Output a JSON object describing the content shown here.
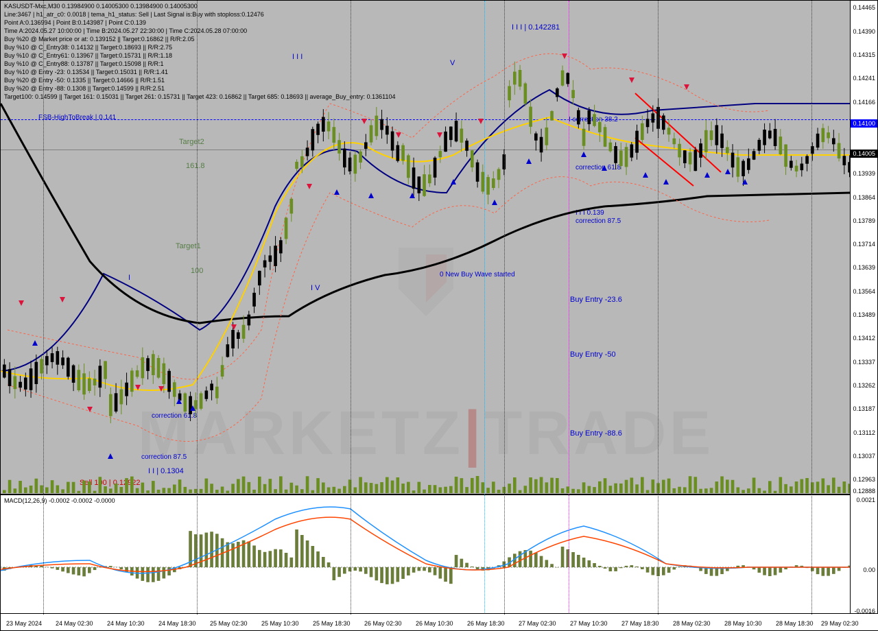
{
  "header": {
    "symbol": "KASUSDT-Mxc,M30",
    "ohlc": "0.13984900 0.14005300 0.13984900 0.14005300",
    "line1": "Line:3467 | h1_atr_c0: 0.0018 | tema_h1_status: Sell | Last Signal is:Buy with stoploss:0.12476",
    "line2": "Point A:0.136994 | Point B:0.143987 | Point C:0.139",
    "line3": "Time A:2024.05.27 10:00:00 | Time B:2024.05.27 22:30:00 | Time C:2024.05.28 07:00:00",
    "line4": "Buy %20 @ Market price or at: 0.139152 || Target:0.16862 || R/R:2.05",
    "line5": "Buy %10 @ C_Entry38: 0.14132 || Target:0.18693 || R/R:2.75",
    "line6": "Buy %10 @ C_Entry61: 0.13967 || Target:0.15731 || R/R:1.18",
    "line7": "Buy %10 @ C_Entry88: 0.13787 || Target:0.15098 || R/R:1",
    "line8": "Buy %10 @ Entry -23: 0.13534 || Target:0.15031 || R/R:1.41",
    "line9": "Buy %20 @ Entry -50: 0.1335 || Target:0.14666 || R/R:1.51",
    "line10": "Buy %20 @ Entry -88: 0.1308 || Target:0.14599 || R/R:2.51",
    "line11": "Target100: 0.14599 || Target 161: 0.15031 || Target 261: 0.15731 || Target 423: 0.16862 || Target 685: 0.18693 || average_Buy_entry: 0.1361104"
  },
  "yaxis": {
    "labels": [
      "0.14465",
      "0.14390",
      "0.14315",
      "0.14241",
      "0.14166",
      "0.14100",
      "0.14005",
      "0.13939",
      "0.13864",
      "0.13789",
      "0.13714",
      "0.13639",
      "0.13564",
      "0.13489",
      "0.13412",
      "0.13337",
      "0.13262",
      "0.13187",
      "0.13112",
      "0.13037",
      "0.12963",
      "0.12888"
    ],
    "positions": [
      5,
      40,
      74,
      108,
      143,
      173,
      217,
      247,
      282,
      316,
      350,
      384,
      419,
      453,
      487,
      522,
      556,
      590,
      625,
      659,
      693,
      710
    ],
    "highlight_idx": 6,
    "blue_idx": 5
  },
  "yaxis_macd": {
    "labels": [
      "0.0021",
      "0.00",
      "-0.0016"
    ],
    "positions": [
      3,
      105,
      165
    ]
  },
  "xaxis": {
    "labels": [
      "23 May 2024",
      "24 May 02:30",
      "24 May 10:30",
      "24 May 18:30",
      "25 May 02:30",
      "25 May 10:30",
      "25 May 18:30",
      "26 May 02:30",
      "26 May 10:30",
      "26 May 18:30",
      "27 May 02:30",
      "27 May 10:30",
      "27 May 18:30",
      "28 May 02:30",
      "28 May 10:30",
      "28 May 18:30",
      "29 May 02:30"
    ],
    "positions": [
      8,
      80,
      155,
      230,
      305,
      380,
      455,
      530,
      605,
      680,
      755,
      830,
      905,
      980,
      1055,
      1130,
      1196
    ]
  },
  "annotations": {
    "fsb": "FSB-HighToBreak | 0.141",
    "target2": "Target2",
    "target2_pct": "161.8",
    "target1": "Target1",
    "target1_pct": "100",
    "wave_I": "I",
    "wave_II": "I I",
    "wave_III": "I I I",
    "wave_IV": "I V",
    "wave_V": "V",
    "wave_III_top": "I I I | 0.142281",
    "wave_IIb": "I I | 0.1304",
    "sell100": "Sell 100 | 0.12922",
    "newbuy": "0 New Buy Wave started",
    "entry236": "Buy Entry -23.6",
    "entry50": "Buy Entry -50",
    "entry886": "Buy Entry -88.6",
    "corr382": "I correction 38.2",
    "corr618": "correction 61.8",
    "corr875": "correction 87.5",
    "corr_hi": "I I I 0.139",
    "corr_hi2": "correction 87.5",
    "corr618_low": "correction 61.8"
  },
  "macd": {
    "label": "MACD(12,26,9) -0.0002 -0.0002 -0.0000"
  },
  "candles": {
    "count": 160,
    "color_up": "#6b8e23",
    "color_down": "#000000",
    "wick_color": "#000000"
  },
  "indicators": {
    "ma_black": "#000000",
    "ma_navy": "#000080",
    "ma_yellow": "#ffd100",
    "channel_red": "#ff6347",
    "arrow_blue": "#0000cd",
    "arrow_red": "#dc143c",
    "trend_red": "#ff0000"
  },
  "watermark": {
    "text1": "MARKETZ",
    "text2": "TRADE"
  }
}
